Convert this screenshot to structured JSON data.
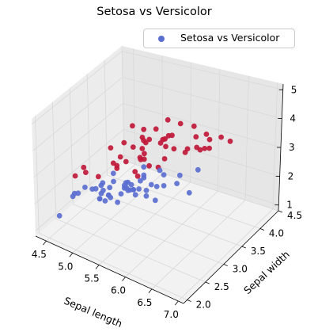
{
  "chart_data": {
    "type": "scatter",
    "projection": "3d",
    "title": "Setosa vs Versicolor",
    "xlabel": "Sepal length",
    "ylabel": "Sepal width",
    "zlabel": "",
    "xlim": [
      4.3,
      7.1
    ],
    "ylim": [
      1.9,
      4.5
    ],
    "zlim": [
      0.8,
      5.2
    ],
    "xticks": [
      "4.5",
      "5.0",
      "5.5",
      "6.0",
      "6.5",
      "7.0"
    ],
    "yticks": [
      "2.0",
      "2.5",
      "3.0",
      "3.5",
      "4.0",
      "4.5"
    ],
    "zticks": [
      "1",
      "2",
      "3",
      "4",
      "5"
    ],
    "legend": {
      "position": "top-right",
      "label": "Setosa vs Versicolor"
    },
    "grid": true,
    "colors": {
      "setosa": "#5b6fd0",
      "versicolor": "#c0183a",
      "pane": "#f2f2f2",
      "grid": "#d8d8d8"
    },
    "series": [
      {
        "name": "Setosa vs Versicolor",
        "color": "#5b6fd0",
        "x": [
          5.1,
          4.9,
          4.7,
          4.6,
          5.0,
          5.4,
          4.6,
          5.0,
          4.4,
          4.9,
          5.4,
          4.8,
          4.8,
          4.3,
          5.8,
          5.7,
          5.4,
          5.1,
          5.7,
          5.1,
          5.4,
          5.1,
          4.6,
          5.1,
          4.8,
          5.0,
          5.0,
          5.2,
          5.2,
          4.7,
          4.8,
          5.4,
          5.2,
          5.5,
          4.9,
          5.0,
          5.5,
          4.9,
          4.4,
          5.1,
          5.0,
          4.5,
          4.4,
          5.0,
          5.1,
          4.8,
          5.1,
          4.6,
          5.3,
          5.0
        ],
        "y": [
          3.5,
          3.0,
          3.2,
          3.1,
          3.6,
          3.9,
          3.4,
          3.4,
          2.9,
          3.1,
          3.7,
          3.4,
          3.0,
          3.0,
          4.0,
          4.4,
          3.9,
          3.5,
          3.8,
          3.8,
          3.4,
          3.7,
          3.6,
          3.3,
          3.4,
          3.0,
          3.4,
          3.5,
          3.4,
          3.2,
          3.1,
          3.4,
          4.1,
          4.2,
          3.1,
          3.2,
          3.5,
          3.6,
          3.0,
          3.4,
          3.5,
          2.3,
          3.2,
          3.5,
          3.8,
          3.0,
          3.8,
          3.2,
          3.7,
          3.3
        ],
        "z": [
          1.4,
          1.4,
          1.3,
          1.5,
          1.4,
          1.7,
          1.4,
          1.5,
          1.4,
          1.5,
          1.5,
          1.6,
          1.4,
          1.1,
          1.2,
          1.5,
          1.3,
          1.4,
          1.7,
          1.5,
          1.7,
          1.5,
          1.0,
          1.7,
          1.9,
          1.6,
          1.6,
          1.5,
          1.4,
          1.6,
          1.6,
          1.5,
          1.5,
          1.4,
          1.5,
          1.2,
          1.3,
          1.4,
          1.3,
          1.5,
          1.3,
          1.3,
          1.3,
          1.6,
          1.9,
          1.4,
          1.6,
          1.4,
          1.5,
          1.4
        ]
      },
      {
        "name": "",
        "color": "#c0183a",
        "x": [
          7.0,
          6.4,
          6.9,
          5.5,
          6.5,
          5.7,
          6.3,
          4.9,
          6.6,
          5.2,
          5.0,
          5.9,
          6.0,
          6.1,
          5.6,
          6.7,
          5.6,
          5.8,
          6.2,
          5.6,
          5.9,
          6.1,
          6.3,
          6.1,
          6.4,
          6.6,
          6.8,
          6.7,
          6.0,
          5.7,
          5.5,
          5.5,
          5.8,
          6.0,
          5.4,
          6.0,
          6.7,
          6.3,
          5.6,
          5.5,
          5.5,
          6.1,
          5.8,
          5.0,
          5.6,
          5.7,
          5.7,
          6.2,
          5.1,
          5.7
        ],
        "y": [
          3.2,
          3.2,
          3.1,
          2.3,
          2.8,
          2.8,
          3.3,
          2.4,
          2.9,
          2.7,
          2.0,
          3.0,
          2.2,
          2.9,
          2.9,
          3.1,
          3.0,
          2.7,
          2.2,
          2.5,
          3.2,
          2.8,
          2.5,
          2.8,
          2.9,
          3.0,
          2.8,
          3.0,
          2.9,
          2.6,
          2.4,
          2.4,
          2.7,
          2.7,
          3.0,
          3.4,
          3.1,
          2.3,
          3.0,
          2.5,
          2.6,
          3.0,
          2.6,
          2.3,
          2.7,
          3.0,
          2.9,
          2.9,
          2.5,
          2.8
        ],
        "z": [
          4.7,
          4.5,
          4.9,
          4.0,
          4.6,
          4.5,
          4.7,
          3.3,
          4.6,
          3.9,
          3.5,
          4.2,
          4.0,
          4.7,
          3.6,
          4.4,
          4.5,
          4.1,
          4.5,
          3.9,
          4.8,
          4.0,
          4.9,
          4.7,
          4.3,
          4.4,
          4.8,
          5.0,
          4.5,
          3.5,
          3.8,
          3.7,
          3.9,
          5.1,
          4.5,
          4.5,
          4.7,
          4.4,
          4.1,
          4.0,
          4.4,
          4.6,
          4.0,
          3.3,
          4.2,
          4.2,
          4.2,
          4.3,
          3.0,
          4.1
        ]
      }
    ]
  }
}
